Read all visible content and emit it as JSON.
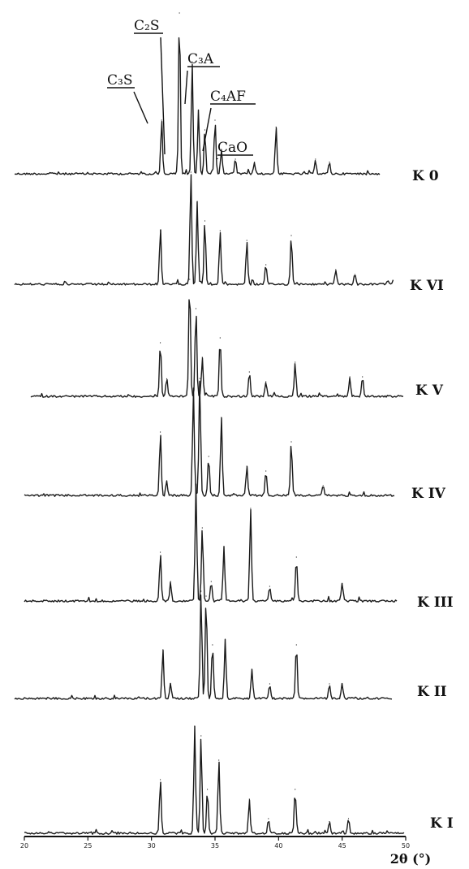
{
  "chart_data": {
    "type": "line",
    "xlabel": "2θ (°)",
    "xlim": [
      20,
      50
    ],
    "x_ticks": [
      "20",
      "25",
      "30",
      "35",
      "40",
      "45",
      "50"
    ],
    "phase_labels": [
      {
        "text": "C₃S",
        "x": 30.8
      },
      {
        "text": "C₂S",
        "x": 32.2
      },
      {
        "text": "C₃A",
        "x": 33.6
      },
      {
        "text": "C₄AF",
        "x": 34.8
      },
      {
        "text": "CaO",
        "x": 37.4
      }
    ],
    "series": [
      {
        "name": "K 0",
        "peaks": [
          [
            30.8,
            0.55
          ],
          [
            32.2,
            1.65
          ],
          [
            33.2,
            1.15
          ],
          [
            33.7,
            0.65
          ],
          [
            34.2,
            0.45
          ],
          [
            35.0,
            0.55
          ],
          [
            35.5,
            0.25
          ],
          [
            36.6,
            0.15
          ],
          [
            38.1,
            0.12
          ],
          [
            39.8,
            0.48
          ],
          [
            42.9,
            0.15
          ],
          [
            44.0,
            0.12
          ]
        ]
      },
      {
        "name": "K VI",
        "peaks": [
          [
            30.7,
            0.55
          ],
          [
            33.1,
            1.15
          ],
          [
            33.6,
            0.85
          ],
          [
            34.2,
            0.65
          ],
          [
            35.4,
            0.55
          ],
          [
            37.5,
            0.45
          ],
          [
            39.0,
            0.2
          ],
          [
            41.0,
            0.5
          ],
          [
            44.5,
            0.15
          ],
          [
            46.0,
            0.1
          ]
        ]
      },
      {
        "name": "K V",
        "peaks": [
          [
            30.7,
            0.55
          ],
          [
            31.2,
            0.18
          ],
          [
            33.0,
            1.2
          ],
          [
            33.5,
            0.9
          ],
          [
            34.0,
            0.4
          ],
          [
            35.4,
            0.6
          ],
          [
            37.7,
            0.25
          ],
          [
            39.0,
            0.15
          ],
          [
            41.3,
            0.35
          ],
          [
            45.6,
            0.2
          ],
          [
            46.6,
            0.2
          ]
        ]
      },
      {
        "name": "K IV",
        "peaks": [
          [
            30.7,
            0.65
          ],
          [
            31.2,
            0.15
          ],
          [
            33.3,
            1.1
          ],
          [
            33.8,
            1.2
          ],
          [
            34.5,
            0.4
          ],
          [
            35.5,
            0.8
          ],
          [
            37.5,
            0.3
          ],
          [
            39.0,
            0.25
          ],
          [
            41.0,
            0.55
          ],
          [
            43.5,
            0.1
          ]
        ]
      },
      {
        "name": "K III",
        "peaks": [
          [
            30.7,
            0.5
          ],
          [
            31.5,
            0.2
          ],
          [
            33.5,
            1.2
          ],
          [
            34.0,
            0.75
          ],
          [
            34.7,
            0.2
          ],
          [
            35.7,
            0.55
          ],
          [
            37.8,
            0.95
          ],
          [
            39.3,
            0.15
          ],
          [
            41.4,
            0.45
          ],
          [
            45.0,
            0.18
          ]
        ]
      },
      {
        "name": "K II",
        "peaks": [
          [
            30.9,
            0.5
          ],
          [
            31.5,
            0.15
          ],
          [
            33.9,
            1.1
          ],
          [
            34.3,
            1.05
          ],
          [
            34.8,
            0.55
          ],
          [
            35.8,
            0.6
          ],
          [
            37.9,
            0.3
          ],
          [
            39.3,
            0.15
          ],
          [
            41.4,
            0.55
          ],
          [
            44.0,
            0.15
          ],
          [
            45.0,
            0.15
          ]
        ]
      },
      {
        "name": "K I",
        "peaks": [
          [
            30.7,
            0.55
          ],
          [
            33.4,
            1.1
          ],
          [
            33.9,
            1.0
          ],
          [
            34.4,
            0.45
          ],
          [
            35.3,
            0.75
          ],
          [
            37.7,
            0.35
          ],
          [
            39.2,
            0.15
          ],
          [
            41.3,
            0.45
          ],
          [
            44.0,
            0.12
          ],
          [
            45.5,
            0.15
          ]
        ]
      }
    ]
  }
}
